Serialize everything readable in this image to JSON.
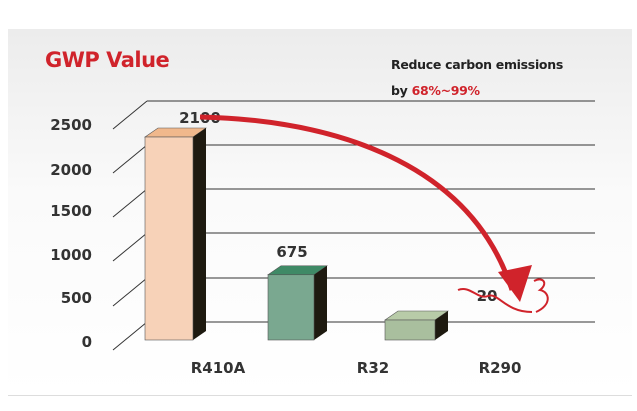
{
  "chart_data": {
    "type": "bar",
    "title": "GWP Value",
    "annotation": {
      "text": "Reduce carbon emissions",
      "prefix": "by",
      "highlight": "68%~99%"
    },
    "categories": [
      "R410A",
      "R32",
      "R290"
    ],
    "values": [
      2100,
      675,
      20
    ],
    "yticks": [
      0,
      500,
      1000,
      1500,
      2000,
      2500
    ],
    "ylim": [
      0,
      2500
    ],
    "grid": true,
    "colors": {
      "R410A": "#f7d2b8",
      "R32": "#7aa890",
      "R290": "#a9bf9e",
      "accent": "#d0232b"
    },
    "xlabel": "",
    "ylabel": ""
  }
}
